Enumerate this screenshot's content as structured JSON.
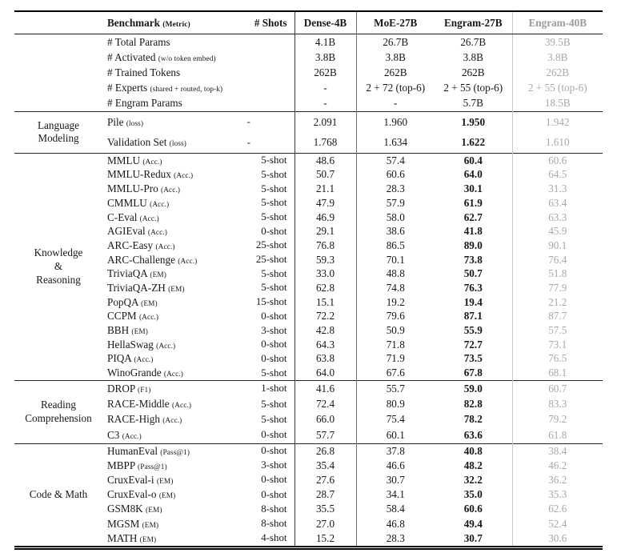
{
  "table": {
    "header": {
      "benchmark_label": "Benchmark",
      "benchmark_metric_label": "(Metric)",
      "shots_label": "# Shots",
      "columns": [
        "Dense-4B",
        "MoE-27B",
        "Engram-27B",
        "Engram-40B"
      ]
    },
    "colors": {
      "text": "#171717",
      "muted_column": "#a8a8a8",
      "muted_header": "#9b9b9b",
      "rule_dark": "#000000",
      "rule_light_vertical": "#c8c8c8"
    },
    "sections": [
      {
        "category": "",
        "bold_engram27": false,
        "rows": [
          {
            "name": "# Total Params",
            "metric": "",
            "shots": "",
            "values": [
              "4.1B",
              "26.7B",
              "26.7B",
              "39.5B"
            ]
          },
          {
            "name": "# Activated",
            "metric": "(w/o token embed)",
            "shots": "",
            "values": [
              "3.8B",
              "3.8B",
              "3.8B",
              "3.8B"
            ]
          },
          {
            "name": "# Trained Tokens",
            "metric": "",
            "shots": "",
            "values": [
              "262B",
              "262B",
              "262B",
              "262B"
            ]
          },
          {
            "name": "# Experts",
            "metric": "(shared + routed, top-k)",
            "shots": "",
            "values": [
              "-",
              "2 + 72 (top-6)",
              "2 + 55 (top-6)",
              "2 + 55 (top-6)"
            ]
          },
          {
            "name": "# Engram Params",
            "metric": "",
            "shots": "",
            "values": [
              "-",
              "-",
              "5.7B",
              "18.5B"
            ]
          }
        ]
      },
      {
        "category": "Language\nModeling",
        "bold_engram27": true,
        "rows": [
          {
            "name": "Pile",
            "metric": "(loss)",
            "shots": "-",
            "values": [
              "2.091",
              "1.960",
              "1.950",
              "1.942"
            ]
          },
          {
            "name": "Validation Set",
            "metric": "(loss)",
            "shots": "-",
            "values": [
              "1.768",
              "1.634",
              "1.622",
              "1.610"
            ]
          }
        ]
      },
      {
        "category": "Knowledge\n&\nReasoning",
        "bold_engram27": true,
        "rows": [
          {
            "name": "MMLU",
            "metric": "(Acc.)",
            "shots": "5-shot",
            "values": [
              "48.6",
              "57.4",
              "60.4",
              "60.6"
            ]
          },
          {
            "name": "MMLU-Redux",
            "metric": "(Acc.)",
            "shots": "5-shot",
            "values": [
              "50.7",
              "60.6",
              "64.0",
              "64.5"
            ]
          },
          {
            "name": "MMLU-Pro",
            "metric": "(Acc.)",
            "shots": "5-shot",
            "values": [
              "21.1",
              "28.3",
              "30.1",
              "31.3"
            ]
          },
          {
            "name": "CMMLU",
            "metric": "(Acc.)",
            "shots": "5-shot",
            "values": [
              "47.9",
              "57.9",
              "61.9",
              "63.4"
            ]
          },
          {
            "name": "C-Eval",
            "metric": "(Acc.)",
            "shots": "5-shot",
            "values": [
              "46.9",
              "58.0",
              "62.7",
              "63.3"
            ]
          },
          {
            "name": "AGIEval",
            "metric": "(Acc.)",
            "shots": "0-shot",
            "values": [
              "29.1",
              "38.6",
              "41.8",
              "45.9"
            ]
          },
          {
            "name": "ARC-Easy",
            "metric": "(Acc.)",
            "shots": "25-shot",
            "values": [
              "76.8",
              "86.5",
              "89.0",
              "90.1"
            ]
          },
          {
            "name": "ARC-Challenge",
            "metric": "(Acc.)",
            "shots": "25-shot",
            "values": [
              "59.3",
              "70.1",
              "73.8",
              "76.4"
            ]
          },
          {
            "name": "TriviaQA",
            "metric": "(EM)",
            "shots": "5-shot",
            "values": [
              "33.0",
              "48.8",
              "50.7",
              "51.8"
            ]
          },
          {
            "name": "TriviaQA-ZH",
            "metric": "(EM)",
            "shots": "5-shot",
            "values": [
              "62.8",
              "74.8",
              "76.3",
              "77.9"
            ]
          },
          {
            "name": "PopQA",
            "metric": "(EM)",
            "shots": "15-shot",
            "values": [
              "15.1",
              "19.2",
              "19.4",
              "21.2"
            ]
          },
          {
            "name": "CCPM",
            "metric": "(Acc.)",
            "shots": "0-shot",
            "values": [
              "72.2",
              "79.6",
              "87.1",
              "87.7"
            ]
          },
          {
            "name": "BBH",
            "metric": "(EM)",
            "shots": "3-shot",
            "values": [
              "42.8",
              "50.9",
              "55.9",
              "57.5"
            ]
          },
          {
            "name": "HellaSwag",
            "metric": "(Acc.)",
            "shots": "0-shot",
            "values": [
              "64.3",
              "71.8",
              "72.7",
              "73.1"
            ]
          },
          {
            "name": "PIQA",
            "metric": "(Acc.)",
            "shots": "0-shot",
            "values": [
              "63.8",
              "71.9",
              "73.5",
              "76.5"
            ]
          },
          {
            "name": "WinoGrande",
            "metric": "(Acc.)",
            "shots": "5-shot",
            "values": [
              "64.0",
              "67.6",
              "67.8",
              "68.1"
            ]
          }
        ]
      },
      {
        "category": "Reading\nComprehension",
        "bold_engram27": true,
        "rows": [
          {
            "name": "DROP",
            "metric": "(F1)",
            "shots": "1-shot",
            "values": [
              "41.6",
              "55.7",
              "59.0",
              "60.7"
            ]
          },
          {
            "name": "RACE-Middle",
            "metric": "(Acc.)",
            "shots": "5-shot",
            "values": [
              "72.4",
              "80.9",
              "82.8",
              "83.3"
            ]
          },
          {
            "name": "RACE-High",
            "metric": "(Acc.)",
            "shots": "5-shot",
            "values": [
              "66.0",
              "75.4",
              "78.2",
              "79.2"
            ]
          },
          {
            "name": "C3",
            "metric": "(Acc.)",
            "shots": "0-shot",
            "values": [
              "57.7",
              "60.1",
              "63.6",
              "61.8"
            ]
          }
        ]
      },
      {
        "category": "Code & Math",
        "bold_engram27": true,
        "rows": [
          {
            "name": "HumanEval",
            "metric": "(Pass@1)",
            "shots": "0-shot",
            "values": [
              "26.8",
              "37.8",
              "40.8",
              "38.4"
            ]
          },
          {
            "name": "MBPP",
            "metric": "(Pass@1)",
            "shots": "3-shot",
            "values": [
              "35.4",
              "46.6",
              "48.2",
              "46.2"
            ]
          },
          {
            "name": "CruxEval-i",
            "metric": "(EM)",
            "shots": "0-shot",
            "values": [
              "27.6",
              "30.7",
              "32.2",
              "36.2"
            ]
          },
          {
            "name": "CruxEval-o",
            "metric": "(EM)",
            "shots": "0-shot",
            "values": [
              "28.7",
              "34.1",
              "35.0",
              "35.3"
            ]
          },
          {
            "name": "GSM8K",
            "metric": "(EM)",
            "shots": "8-shot",
            "values": [
              "35.5",
              "58.4",
              "60.6",
              "62.6"
            ]
          },
          {
            "name": "MGSM",
            "metric": "(EM)",
            "shots": "8-shot",
            "values": [
              "27.0",
              "46.8",
              "49.4",
              "52.4"
            ]
          },
          {
            "name": "MATH",
            "metric": "(EM)",
            "shots": "4-shot",
            "values": [
              "15.2",
              "28.3",
              "30.7",
              "30.6"
            ]
          }
        ]
      }
    ]
  }
}
